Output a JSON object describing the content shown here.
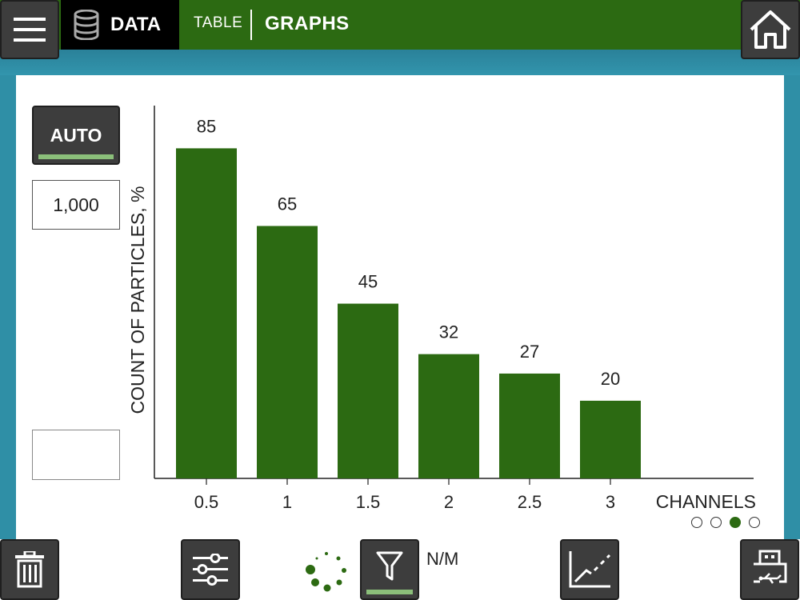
{
  "header": {
    "section_label": "DATA",
    "tabs": [
      {
        "label": "TABLE",
        "active": false
      },
      {
        "label": "GRAPHS",
        "active": true
      }
    ]
  },
  "left_controls": {
    "auto_label": "AUTO",
    "y_max_value": "1,000",
    "y_min_value": ""
  },
  "chart_data": {
    "type": "bar",
    "title": "",
    "xlabel": "CHANNELS",
    "ylabel": "COUNT OF PARTICLES, %",
    "categories": [
      "0.5",
      "1",
      "1.5",
      "2",
      "2.5",
      "3"
    ],
    "values": [
      85,
      65,
      45,
      32,
      27,
      20
    ],
    "ylim": [
      0,
      96
    ],
    "bar_color": "#2c6a12",
    "grid": false
  },
  "pager": {
    "pages": 4,
    "active_index": 2
  },
  "bottom_bar": {
    "filter_status": "N/M"
  },
  "colors": {
    "top_bar": "#2c6a12",
    "accent_green": "#8bbf7a",
    "button_dark": "#3d3d3d",
    "background_teal": "#2f8fa6"
  }
}
